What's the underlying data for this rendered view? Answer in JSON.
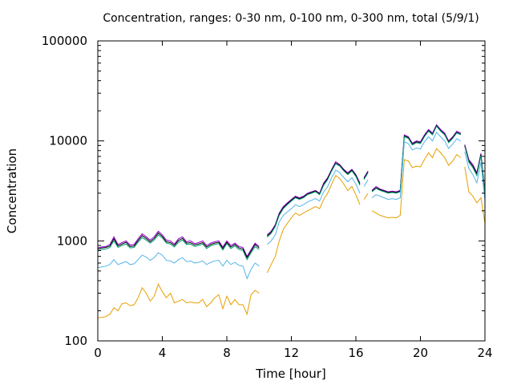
{
  "chart_data": {
    "type": "line",
    "title": "Concentration, ranges: 0-30 nm, 0-100 nm, 0-300 nm, total (5/9/1)",
    "xlabel": "Time [hour]",
    "ylabel": "Concentration",
    "xlim": [
      0,
      24
    ],
    "ylim": [
      100,
      100000
    ],
    "yscale": "log",
    "grid": false,
    "legend": "none",
    "x_ticks": [
      "0",
      "4",
      "8",
      "12",
      "16",
      "20",
      "24"
    ],
    "y_ticks": [
      "100",
      "1000",
      "10000",
      "100000"
    ],
    "series": [
      {
        "color": "#9400d3",
        "x": [
          0.0,
          0.25,
          0.5,
          0.75,
          1.0,
          1.25,
          1.5,
          1.75,
          2.0,
          2.25,
          2.5,
          2.75,
          3.0,
          3.25,
          3.5,
          3.75,
          4.0,
          4.25,
          4.5,
          4.75,
          5.0,
          5.25,
          5.5,
          5.75,
          6.0,
          6.25,
          6.5,
          6.75,
          7.0,
          7.25,
          7.5,
          7.75,
          8.0,
          8.25,
          8.5,
          8.75,
          9.0,
          9.25,
          9.5,
          9.75,
          10.0,
          null,
          10.5,
          10.75,
          11.0,
          11.25,
          11.5,
          11.75,
          12.0,
          12.25,
          12.5,
          12.75,
          13.0,
          13.25,
          13.5,
          13.75,
          14.0,
          14.25,
          14.5,
          14.75,
          15.0,
          15.25,
          15.5,
          15.75,
          16.0,
          16.25,
          null,
          16.5,
          16.75,
          null,
          17.0,
          17.25,
          17.5,
          17.75,
          18.0,
          18.25,
          18.5,
          18.75,
          19.0,
          19.25,
          19.5,
          19.75,
          20.0,
          20.25,
          20.5,
          20.75,
          21.0,
          21.25,
          21.5,
          21.75,
          22.0,
          22.25,
          22.5,
          null,
          22.75,
          23.0,
          23.25,
          23.5,
          23.75,
          24.0
        ],
        "y": [
          850,
          870,
          880,
          920,
          1100,
          920,
          960,
          1000,
          910,
          920,
          1050,
          1180,
          1100,
          1020,
          1100,
          1250,
          1150,
          1020,
          1000,
          930,
          1050,
          1100,
          980,
          1000,
          940,
          960,
          1000,
          900,
          950,
          980,
          1000,
          870,
          1000,
          900,
          950,
          880,
          860,
          700,
          820,
          950,
          880,
          null,
          1150,
          1250,
          1450,
          1900,
          2200,
          2400,
          2600,
          2800,
          2700,
          2800,
          3000,
          3100,
          3200,
          3000,
          3800,
          4300,
          5200,
          6200,
          5800,
          5200,
          4800,
          5200,
          4600,
          3800,
          null,
          4300,
          5000,
          null,
          3200,
          3500,
          3300,
          3200,
          3100,
          3150,
          3100,
          3200,
          11500,
          11000,
          9500,
          10000,
          9800,
          11500,
          13000,
          12000,
          14500,
          13000,
          12000,
          10000,
          11000,
          12500,
          12000,
          null,
          9200,
          6500,
          5800,
          4800,
          7500,
          3000
        ]
      },
      {
        "color": "#000000",
        "x": [
          0.0,
          0.25,
          0.5,
          0.75,
          1.0,
          1.25,
          1.5,
          1.75,
          2.0,
          2.25,
          2.5,
          2.75,
          3.0,
          3.25,
          3.5,
          3.75,
          4.0,
          4.25,
          4.5,
          4.75,
          5.0,
          5.25,
          5.5,
          5.75,
          6.0,
          6.25,
          6.5,
          6.75,
          7.0,
          7.25,
          7.5,
          7.75,
          8.0,
          8.25,
          8.5,
          8.75,
          9.0,
          9.25,
          9.5,
          9.75,
          10.0,
          null,
          10.5,
          10.75,
          11.0,
          11.25,
          11.5,
          11.75,
          12.0,
          12.25,
          12.5,
          12.75,
          13.0,
          13.25,
          13.5,
          13.75,
          14.0,
          14.25,
          14.5,
          14.75,
          15.0,
          15.25,
          15.5,
          15.75,
          16.0,
          16.25,
          null,
          16.5,
          16.75,
          null,
          17.0,
          17.25,
          17.5,
          17.75,
          18.0,
          18.25,
          18.5,
          18.75,
          19.0,
          19.25,
          19.5,
          19.75,
          20.0,
          20.25,
          20.5,
          20.75,
          21.0,
          21.25,
          21.5,
          21.75,
          22.0,
          22.25,
          22.5,
          null,
          22.75,
          23.0,
          23.25,
          23.5,
          23.75,
          24.0
        ],
        "y": [
          830,
          850,
          860,
          890,
          1050,
          890,
          930,
          970,
          880,
          890,
          1010,
          1130,
          1060,
          980,
          1060,
          1200,
          1110,
          980,
          960,
          900,
          1010,
          1060,
          950,
          960,
          910,
          930,
          960,
          870,
          920,
          950,
          970,
          840,
          970,
          870,
          920,
          850,
          830,
          680,
          790,
          920,
          850,
          null,
          1120,
          1220,
          1420,
          1850,
          2150,
          2350,
          2550,
          2750,
          2650,
          2750,
          2950,
          3050,
          3150,
          2950,
          3700,
          4200,
          5100,
          6000,
          5700,
          5100,
          4700,
          5100,
          4500,
          3700,
          null,
          4200,
          4900,
          null,
          3150,
          3400,
          3250,
          3150,
          3050,
          3100,
          3050,
          3150,
          11200,
          10800,
          9300,
          9800,
          9600,
          11200,
          12700,
          11700,
          14200,
          12700,
          11700,
          9800,
          10800,
          12200,
          11700,
          null,
          9000,
          6300,
          5600,
          4700,
          7300,
          2950
        ]
      },
      {
        "color": "#009e73",
        "x": [
          0.0,
          0.25,
          0.5,
          0.75,
          1.0,
          1.25,
          1.5,
          1.75,
          2.0,
          2.25,
          2.5,
          2.75,
          3.0,
          3.25,
          3.5,
          3.75,
          4.0,
          4.25,
          4.5,
          4.75,
          5.0,
          5.25,
          5.5,
          5.75,
          6.0,
          6.25,
          6.5,
          6.75,
          7.0,
          7.25,
          7.5,
          7.75,
          8.0,
          8.25,
          8.5,
          8.75,
          9.0,
          9.25,
          9.5,
          9.75,
          10.0,
          null,
          10.5,
          10.75,
          11.0,
          11.25,
          11.5,
          11.75,
          12.0,
          12.25,
          12.5,
          12.75,
          13.0,
          13.25,
          13.5,
          13.75,
          14.0,
          14.25,
          14.5,
          14.75,
          15.0,
          15.25,
          15.5,
          15.75,
          16.0,
          16.25,
          null,
          16.5,
          16.75,
          null,
          17.0,
          17.25,
          17.5,
          17.75,
          18.0,
          18.25,
          18.5,
          18.75,
          19.0,
          19.25,
          19.5,
          19.75,
          20.0,
          20.25,
          20.5,
          20.75,
          21.0,
          21.25,
          21.5,
          21.75,
          22.0,
          22.25,
          22.5,
          null,
          22.75,
          23.0,
          23.25,
          23.5,
          23.75,
          24.0
        ],
        "y": [
          800,
          820,
          830,
          860,
          1000,
          860,
          900,
          930,
          850,
          860,
          970,
          1080,
          1020,
          950,
          1020,
          1150,
          1070,
          950,
          930,
          870,
          970,
          1020,
          920,
          930,
          880,
          900,
          930,
          840,
          890,
          920,
          940,
          810,
          940,
          840,
          890,
          820,
          800,
          650,
          760,
          880,
          820,
          null,
          1090,
          1190,
          1390,
          1800,
          2100,
          2300,
          2500,
          2700,
          2600,
          2700,
          2900,
          3000,
          3100,
          2900,
          3600,
          4100,
          5000,
          5900,
          5600,
          5000,
          4600,
          5000,
          4400,
          3600,
          null,
          4100,
          4800,
          null,
          3100,
          3350,
          3200,
          3100,
          3000,
          3050,
          3000,
          3100,
          11000,
          10600,
          9100,
          9600,
          9400,
          11000,
          12500,
          11500,
          14000,
          12500,
          11500,
          9600,
          10600,
          12000,
          11500,
          null,
          8800,
          6100,
          5400,
          4500,
          7100,
          2900
        ]
      },
      {
        "color": "#56b4e9",
        "x": [
          0.0,
          0.25,
          0.5,
          0.75,
          1.0,
          1.25,
          1.5,
          1.75,
          2.0,
          2.25,
          2.5,
          2.75,
          3.0,
          3.25,
          3.5,
          3.75,
          4.0,
          4.25,
          4.5,
          4.75,
          5.0,
          5.25,
          5.5,
          5.75,
          6.0,
          6.25,
          6.5,
          6.75,
          7.0,
          7.25,
          7.5,
          7.75,
          8.0,
          8.25,
          8.5,
          8.75,
          9.0,
          9.25,
          9.5,
          9.75,
          10.0,
          null,
          10.5,
          10.75,
          11.0,
          11.25,
          11.5,
          11.75,
          12.0,
          12.25,
          12.5,
          12.75,
          13.0,
          13.25,
          13.5,
          13.75,
          14.0,
          14.25,
          14.5,
          14.75,
          15.0,
          15.25,
          15.5,
          15.75,
          16.0,
          16.25,
          null,
          16.5,
          16.75,
          null,
          17.0,
          17.25,
          17.5,
          17.75,
          18.0,
          18.25,
          18.5,
          18.75,
          19.0,
          19.25,
          19.5,
          19.75,
          20.0,
          20.25,
          20.5,
          20.75,
          21.0,
          21.25,
          21.5,
          21.75,
          22.0,
          22.25,
          22.5,
          null,
          22.75,
          23.0,
          23.25,
          23.5,
          23.75,
          24.0
        ],
        "y": [
          540,
          550,
          560,
          580,
          650,
          580,
          600,
          620,
          580,
          590,
          650,
          720,
          690,
          640,
          680,
          760,
          720,
          640,
          630,
          600,
          650,
          680,
          620,
          630,
          600,
          610,
          630,
          580,
          610,
          630,
          640,
          560,
          640,
          580,
          610,
          570,
          560,
          420,
          520,
          600,
          560,
          null,
          920,
          1000,
          1150,
          1550,
          1800,
          1950,
          2100,
          2300,
          2200,
          2300,
          2450,
          2550,
          2650,
          2500,
          3100,
          3500,
          4300,
          5100,
          4800,
          4300,
          3900,
          4300,
          3700,
          3000,
          null,
          3500,
          4100,
          null,
          2700,
          2900,
          2800,
          2700,
          2600,
          2650,
          2600,
          2700,
          9800,
          9400,
          8100,
          8500,
          8300,
          9800,
          11000,
          10000,
          12200,
          11000,
          10000,
          8400,
          9300,
          10500,
          10000,
          null,
          7800,
          5300,
          4600,
          3800,
          6100,
          2500
        ]
      },
      {
        "color": "#e69f00",
        "x": [
          0.0,
          0.25,
          0.5,
          0.75,
          1.0,
          1.25,
          1.5,
          1.75,
          2.0,
          2.25,
          2.5,
          2.75,
          3.0,
          3.25,
          3.5,
          3.75,
          4.0,
          4.25,
          4.5,
          4.75,
          5.0,
          5.25,
          5.5,
          5.75,
          6.0,
          6.25,
          6.5,
          6.75,
          7.0,
          7.25,
          7.5,
          7.75,
          8.0,
          8.25,
          8.5,
          8.75,
          9.0,
          9.25,
          9.5,
          9.75,
          10.0,
          null,
          10.5,
          10.75,
          11.0,
          11.25,
          11.5,
          11.75,
          12.0,
          12.25,
          12.5,
          12.75,
          13.0,
          13.25,
          13.5,
          13.75,
          14.0,
          14.25,
          14.5,
          14.75,
          15.0,
          15.25,
          15.5,
          15.75,
          16.0,
          16.25,
          null,
          16.5,
          16.75,
          null,
          17.0,
          17.25,
          17.5,
          17.75,
          18.0,
          18.25,
          18.5,
          18.75,
          19.0,
          19.25,
          19.5,
          19.75,
          20.0,
          20.25,
          20.5,
          20.75,
          21.0,
          21.25,
          21.5,
          21.75,
          22.0,
          22.25,
          22.5,
          null,
          22.75,
          23.0,
          23.25,
          23.5,
          23.75,
          24.0
        ],
        "y": [
          170,
          172,
          175,
          185,
          215,
          200,
          235,
          240,
          225,
          230,
          270,
          340,
          300,
          250,
          280,
          370,
          310,
          270,
          300,
          240,
          250,
          260,
          240,
          245,
          240,
          240,
          260,
          220,
          240,
          270,
          290,
          210,
          280,
          230,
          260,
          230,
          230,
          185,
          290,
          320,
          300,
          null,
          480,
          580,
          700,
          1000,
          1300,
          1500,
          1700,
          1900,
          1800,
          1900,
          2000,
          2100,
          2200,
          2100,
          2600,
          3000,
          3700,
          4500,
          4200,
          3700,
          3200,
          3500,
          2900,
          2300,
          null,
          2600,
          3000,
          null,
          2000,
          1900,
          1800,
          1750,
          1700,
          1720,
          1700,
          1800,
          6500,
          6300,
          5400,
          5600,
          5500,
          6500,
          7600,
          6800,
          8400,
          7600,
          6800,
          5700,
          6300,
          7300,
          6800,
          null,
          5500,
          3100,
          2800,
          2400,
          2700,
          1500
        ]
      }
    ]
  }
}
